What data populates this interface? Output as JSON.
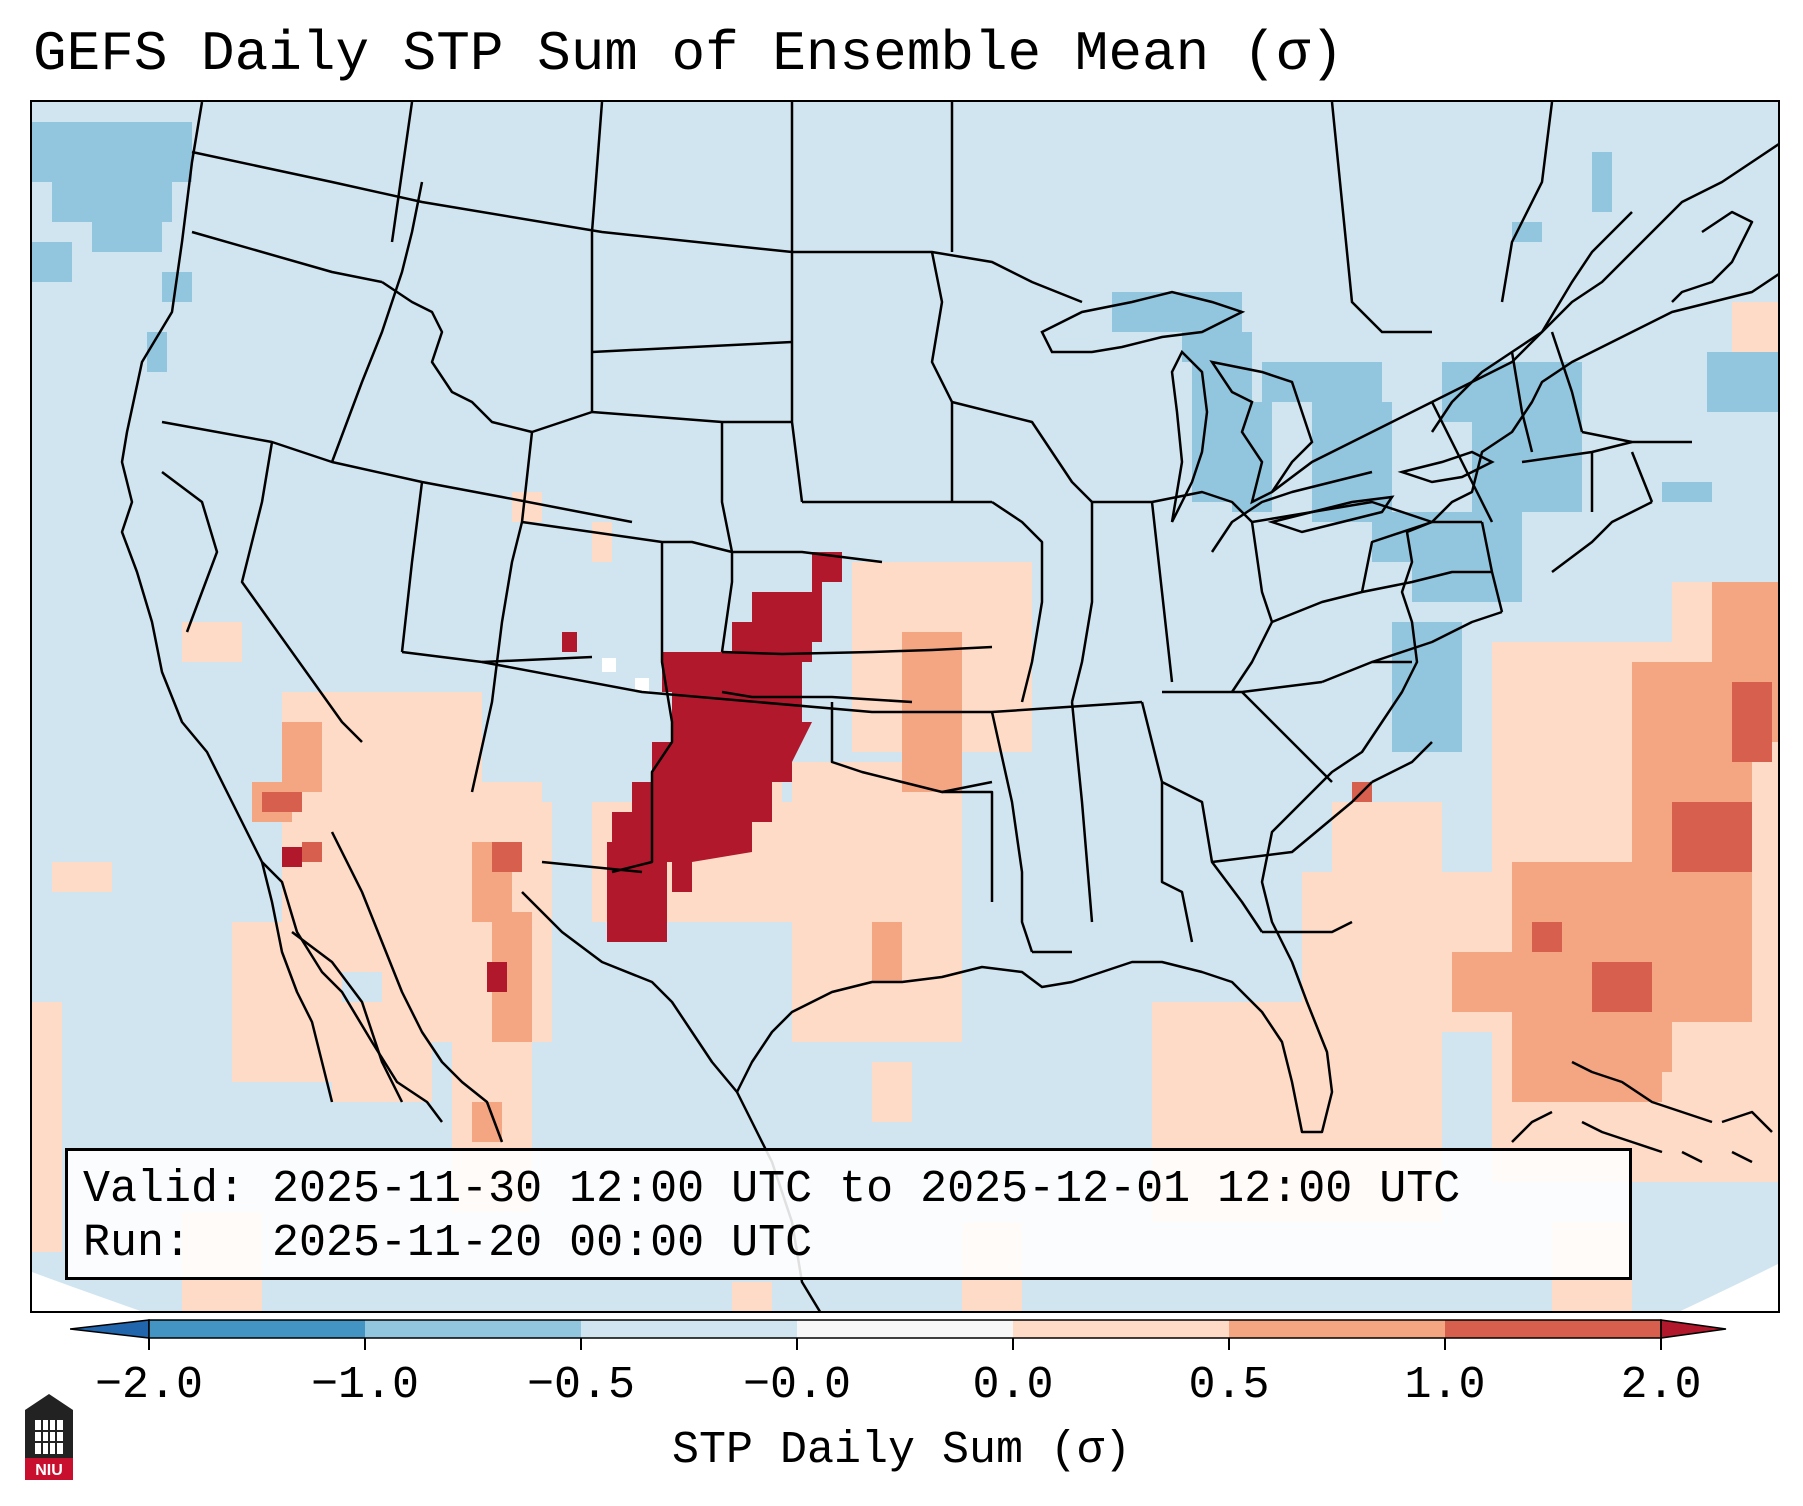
{
  "title": "GEFS Daily STP Sum of Ensemble Mean (σ)",
  "info_box": {
    "valid": "Valid: 2025-11-30 12:00 UTC to 2025-12-01 12:00 UTC",
    "run": "Run:   2025-11-20 00:00 UTC"
  },
  "colorbar": {
    "label": "STP Daily Sum (σ)",
    "ticks": [
      "−2.0",
      "−1.0",
      "−0.5",
      "−0.0",
      "0.0",
      "0.5",
      "1.0",
      "2.0"
    ],
    "bins": [
      {
        "range": "<-2.0",
        "color": "#2166ac"
      },
      {
        "range": "-2.0 to -1.0",
        "color": "#4393c3"
      },
      {
        "range": "-1.0 to -0.5",
        "color": "#92c5de"
      },
      {
        "range": "-0.5 to -0.0",
        "color": "#d1e5f0"
      },
      {
        "range": "-0.0 to 0.0",
        "color": "#f7f7f7"
      },
      {
        "range": "0.0 to 0.5",
        "color": "#fddbc7"
      },
      {
        "range": "0.5 to 1.0",
        "color": "#f4a582"
      },
      {
        "range": "1.0 to 2.0",
        "color": "#d6604d"
      },
      {
        "range": ">2.0",
        "color": "#b2182b"
      }
    ]
  },
  "logo": {
    "text": "NIU"
  }
}
